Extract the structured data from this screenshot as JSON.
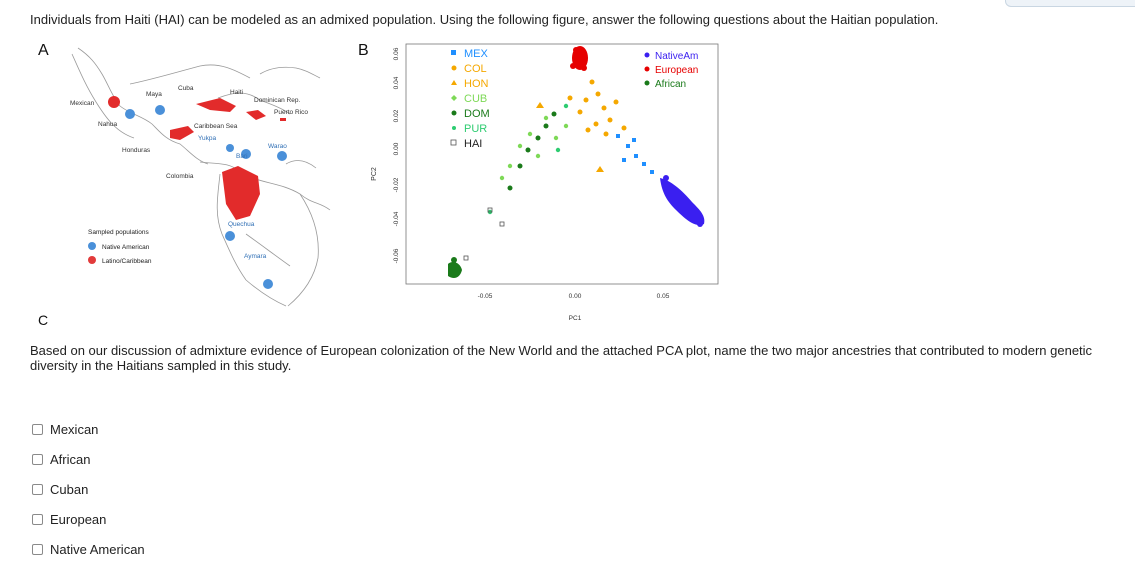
{
  "question": {
    "intro": "Individuals from Haiti (HAI) can be modeled as an admixed population. Using the following figure, answer the following questions about the Haitian population.",
    "prompt": "Based on our discussion of admixture evidence of European colonization of the New World and the attached PCA plot, name the two major ancestries that contributed to modern genetic diversity in the Haitians sampled in this study."
  },
  "figure": {
    "panel_a": "A",
    "panel_b": "B",
    "panel_c": "C",
    "map": {
      "labels": [
        "Mexican",
        "Maya",
        "Cuba",
        "Haiti",
        "Dominican Rep.",
        "Puerto Rico",
        "Nahua",
        "Caribbean Sea",
        "Yukpa",
        "Bari",
        "Warao",
        "Honduras",
        "Colombia",
        "Quechua",
        "Aymara"
      ],
      "legend_title": "Sampled populations",
      "legend_items": [
        {
          "label": "Native American",
          "color": "#4a90d9"
        },
        {
          "label": "Latino/Caribbean",
          "color": "#e23b3b"
        }
      ]
    },
    "pca": {
      "xlabel": "PC1",
      "ylabel": "PC2",
      "x_ticks": [
        "-0.05",
        "0.00",
        "0.05"
      ],
      "y_ticks": [
        "0.06",
        "0.04",
        "0.02",
        "0.00",
        "-0.02",
        "-0.04",
        "-0.06"
      ],
      "legend_left": [
        {
          "label": "MEX",
          "color": "#1f8fff",
          "marker": "square"
        },
        {
          "label": "COL",
          "color": "#f5a800",
          "marker": "circle"
        },
        {
          "label": "HON",
          "color": "#f5a800",
          "marker": "triangle"
        },
        {
          "label": "CUB",
          "color": "#7ed957",
          "marker": "diamond"
        },
        {
          "label": "DOM",
          "color": "#1a7a1a",
          "marker": "circle"
        },
        {
          "label": "PUR",
          "color": "#2ecc71",
          "marker": "circle"
        },
        {
          "label": "HAI",
          "color": "#555555",
          "marker": "open-square"
        }
      ],
      "legend_right": [
        {
          "label": "NativeAm",
          "color": "#3a1ff0"
        },
        {
          "label": "European",
          "color": "#e60000"
        },
        {
          "label": "African",
          "color": "#1a7a1a"
        }
      ]
    }
  },
  "options": [
    {
      "label": "Mexican"
    },
    {
      "label": "African"
    },
    {
      "label": "Cuban"
    },
    {
      "label": "European"
    },
    {
      "label": "Native American"
    }
  ]
}
